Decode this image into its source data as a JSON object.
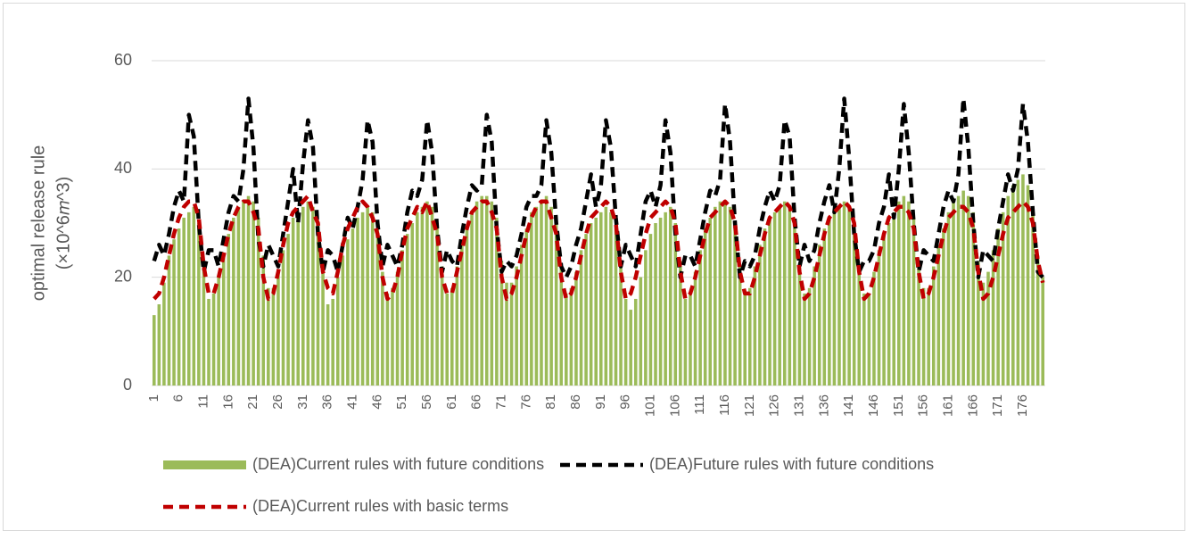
{
  "chart_data": {
    "type": "bar_line",
    "y_label": "optimal release rule",
    "y_unit": "(×10^6𝑚^3)",
    "ylim": [
      0,
      60
    ],
    "yticks": [
      0,
      20,
      40,
      60
    ],
    "grid": true,
    "categories": [
      1,
      null,
      null,
      null,
      null,
      6,
      null,
      null,
      null,
      null,
      11,
      null,
      null,
      null,
      null,
      16,
      null,
      null,
      null,
      null,
      21,
      null,
      null,
      null,
      null,
      26,
      null,
      null,
      null,
      null,
      31,
      null,
      null,
      null,
      null,
      36,
      null,
      null,
      null,
      null,
      41,
      null,
      null,
      null,
      null,
      46,
      null,
      null,
      null,
      null,
      51,
      null,
      null,
      null,
      null,
      56,
      null,
      null,
      null,
      null,
      61,
      null,
      null,
      null,
      null,
      66,
      null,
      null,
      null,
      null,
      71,
      null,
      null,
      null,
      null,
      76,
      null,
      null,
      null,
      null,
      81,
      null,
      null,
      null,
      null,
      86,
      null,
      null,
      null,
      null,
      91,
      null,
      null,
      null,
      null,
      96,
      null,
      null,
      null,
      null,
      101,
      null,
      null,
      null,
      null,
      106,
      null,
      null,
      null,
      null,
      111,
      null,
      null,
      null,
      null,
      116,
      null,
      null,
      null,
      null,
      121,
      null,
      null,
      null,
      null,
      126,
      null,
      null,
      null,
      null,
      131,
      null,
      null,
      null,
      null,
      136,
      null,
      null,
      null,
      null,
      141,
      null,
      null,
      null,
      null,
      146,
      null,
      null,
      null,
      null,
      151,
      null,
      null,
      null,
      null,
      156,
      null,
      null,
      null,
      null,
      161,
      null,
      null,
      null,
      null,
      166,
      null,
      null,
      null,
      null,
      171,
      null,
      null,
      null,
      null,
      176,
      null,
      null,
      null,
      null
    ],
    "series": [
      {
        "name": "(DEA)Current rules with future conditions",
        "kind": "bar",
        "color": "#9bbb59",
        "values": [
          13,
          15,
          19,
          24,
          27,
          29,
          31,
          32,
          33,
          30,
          22,
          16,
          17,
          20,
          24,
          28,
          31,
          33,
          34,
          35,
          34,
          31,
          24,
          18,
          18,
          21,
          25,
          28,
          31,
          32,
          33,
          34,
          33,
          30,
          22,
          15,
          16,
          20,
          24,
          27,
          29,
          31,
          32,
          33,
          32,
          29,
          21,
          17,
          18,
          21,
          25,
          28,
          30,
          32,
          33,
          34,
          33,
          30,
          22,
          17,
          18,
          22,
          26,
          29,
          32,
          34,
          35,
          35,
          34,
          31,
          23,
          19,
          19,
          22,
          26,
          29,
          32,
          33,
          34,
          35,
          33,
          30,
          22,
          17,
          18,
          21,
          25,
          28,
          30,
          31,
          32,
          33,
          32,
          29,
          22,
          16,
          14,
          16,
          20,
          25,
          28,
          30,
          31,
          32,
          33,
          30,
          23,
          16,
          17,
          21,
          25,
          29,
          31,
          33,
          34,
          34,
          33,
          30,
          22,
          17,
          18,
          22,
          26,
          29,
          31,
          32,
          33,
          34,
          33,
          30,
          22,
          17,
          18,
          22,
          26,
          29,
          31,
          32,
          33,
          34,
          33,
          30,
          22,
          17,
          17,
          21,
          25,
          28,
          30,
          32,
          34,
          35,
          34,
          31,
          23,
          18,
          18,
          22,
          26,
          29,
          32,
          34,
          35,
          36,
          35,
          32,
          23,
          19,
          21,
          25,
          29,
          32,
          35,
          37,
          38,
          39,
          37,
          32,
          24,
          20
        ]
      },
      {
        "name": "(DEA)Future rules with future conditions",
        "kind": "line",
        "color": "#000000",
        "values": [
          23,
          26,
          24,
          28,
          33,
          36,
          34,
          50,
          46,
          30,
          21,
          25,
          25,
          22,
          27,
          32,
          35,
          34,
          40,
          53,
          44,
          27,
          22,
          26,
          24,
          22,
          28,
          34,
          40,
          30,
          41,
          49,
          44,
          28,
          21,
          25,
          24,
          21,
          26,
          31,
          29,
          33,
          38,
          49,
          45,
          30,
          22,
          26,
          24,
          22,
          26,
          32,
          36,
          35,
          38,
          49,
          43,
          29,
          21,
          25,
          23,
          22,
          28,
          33,
          37,
          36,
          37,
          50,
          45,
          29,
          21,
          23,
          22,
          24,
          28,
          33,
          35,
          35,
          37,
          49,
          43,
          30,
          22,
          20,
          22,
          26,
          29,
          34,
          39,
          33,
          37,
          49,
          44,
          31,
          22,
          26,
          24,
          22,
          28,
          34,
          36,
          33,
          37,
          49,
          43,
          28,
          20,
          24,
          24,
          22,
          27,
          32,
          36,
          35,
          38,
          52,
          45,
          30,
          20,
          23,
          22,
          24,
          29,
          33,
          36,
          34,
          37,
          49,
          46,
          31,
          22,
          26,
          23,
          25,
          30,
          34,
          37,
          32,
          40,
          53,
          42,
          28,
          21,
          23,
          23,
          25,
          30,
          33,
          39,
          31,
          40,
          52,
          43,
          30,
          21,
          25,
          24,
          23,
          28,
          33,
          36,
          34,
          39,
          53,
          44,
          30,
          20,
          25,
          24,
          23,
          29,
          34,
          39,
          36,
          40,
          52,
          45,
          32,
          21,
          20
        ]
      },
      {
        "name": "(DEA)Current rules with basic terms",
        "kind": "line",
        "color": "#c00000",
        "values": [
          16,
          17,
          20,
          24,
          28,
          31,
          33,
          34,
          34,
          31,
          22,
          17,
          17,
          20,
          24,
          28,
          31,
          33,
          34,
          34,
          32,
          29,
          20,
          16,
          17,
          21,
          26,
          30,
          32,
          33,
          34,
          35,
          32,
          30,
          21,
          18,
          17,
          21,
          26,
          29,
          31,
          33,
          34,
          33,
          31,
          28,
          20,
          16,
          17,
          20,
          25,
          29,
          31,
          33,
          32,
          34,
          31,
          28,
          20,
          17,
          17,
          21,
          25,
          29,
          32,
          33,
          34,
          34,
          32,
          29,
          20,
          16,
          17,
          20,
          24,
          28,
          31,
          33,
          34,
          34,
          31,
          28,
          20,
          16,
          17,
          20,
          24,
          28,
          31,
          32,
          33,
          34,
          33,
          30,
          21,
          16,
          17,
          20,
          24,
          28,
          31,
          32,
          33,
          34,
          33,
          30,
          21,
          16,
          17,
          20,
          24,
          28,
          31,
          32,
          33,
          34,
          33,
          30,
          21,
          17,
          17,
          20,
          24,
          28,
          31,
          32,
          33,
          34,
          33,
          30,
          21,
          16,
          17,
          20,
          24,
          28,
          31,
          32,
          33,
          34,
          33,
          30,
          21,
          16,
          17,
          20,
          24,
          28,
          31,
          32,
          33,
          33,
          32,
          29,
          21,
          16,
          17,
          20,
          24,
          28,
          31,
          32,
          33,
          33,
          32,
          29,
          21,
          16,
          17,
          20,
          24,
          28,
          31,
          32,
          33,
          34,
          33,
          30,
          23,
          19
        ]
      }
    ]
  }
}
